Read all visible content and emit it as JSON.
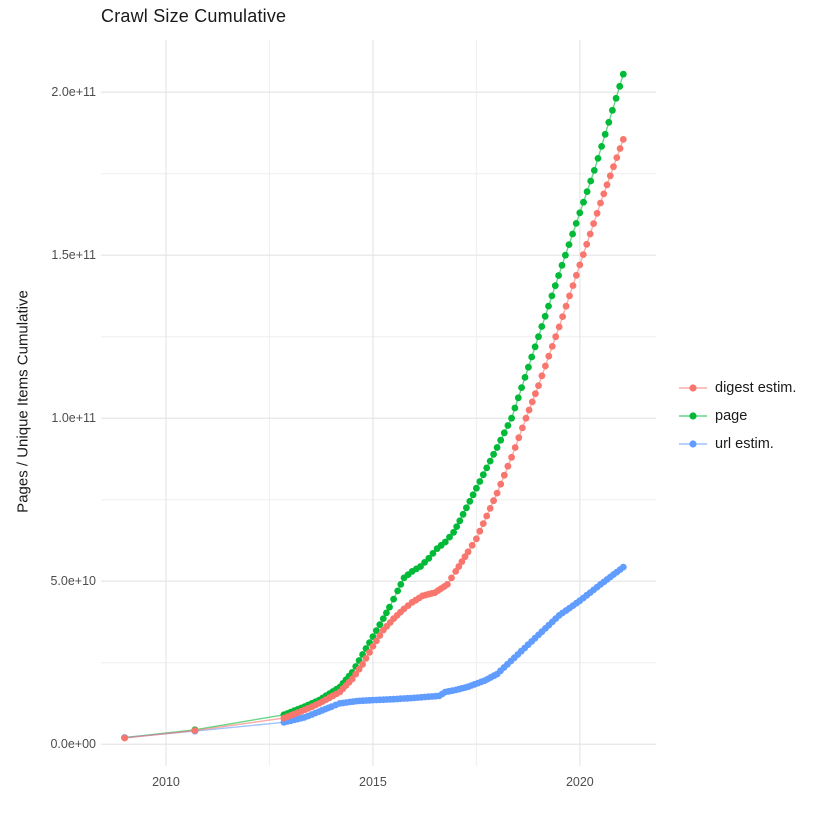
{
  "title": "Crawl Size Cumulative",
  "axes": {
    "y_title": "Pages / Unique Items Cumulative",
    "y_ticks": [
      {
        "label": "0.0e+00",
        "value": 0
      },
      {
        "label": "5.0e+10",
        "value": 50000000000.0
      },
      {
        "label": "1.0e+11",
        "value": 100000000000.0
      },
      {
        "label": "1.5e+11",
        "value": 150000000000.0
      },
      {
        "label": "2.0e+11",
        "value": 200000000000.0
      }
    ],
    "x_ticks": [
      {
        "label": "2010",
        "value": 2010
      },
      {
        "label": "2015",
        "value": 2015
      },
      {
        "label": "2020",
        "value": 2020
      }
    ]
  },
  "legend": [
    {
      "label": "digest estim.",
      "color": "#F8766D"
    },
    {
      "label": "page",
      "color": "#00BA38"
    },
    {
      "label": "url estim.",
      "color": "#619CFF"
    }
  ],
  "colors": {
    "background": "#ffffff",
    "grid_major": "#e4e4e4",
    "grid_minor": "#f0f0f0",
    "tick_text": "#4d4d4d",
    "title_text": "#1a1a1a"
  },
  "chart_data": {
    "type": "line",
    "title": "Crawl Size Cumulative",
    "xlabel": "",
    "ylabel": "Pages / Unique Items Cumulative",
    "x_unit": "year",
    "xlim": [
      2008.43,
      2021.84
    ],
    "ylim": [
      -6700000000.0,
      216000000000.0
    ],
    "x_major_ticks": [
      2010,
      2015,
      2020
    ],
    "x_minor_ticks": [
      2012.5,
      2017.5
    ],
    "y_major_ticks": [
      0,
      50000000000.0,
      100000000000.0,
      150000000000.0,
      200000000000.0
    ],
    "y_minor_ticks": [
      25000000000.0,
      75000000000.0,
      125000000000.0,
      175000000000.0
    ],
    "grid": true,
    "legend_position": "right",
    "marker": "point",
    "point_radius_px": 3.4,
    "dense_interpolation_from": 2013.3,
    "dense_step_years": 0.08333,
    "draw_order": [
      "page",
      "url estim.",
      "digest estim."
    ],
    "series": [
      {
        "name": "digest estim.",
        "color": "#F8766D",
        "points": [
          [
            2009.0,
            1900000000.0
          ],
          [
            2010.7,
            4200000000.0
          ],
          [
            2012.85,
            8000000000.0
          ],
          [
            2013.35,
            10500000000.0
          ],
          [
            2013.7,
            12500000000.0
          ],
          [
            2014.2,
            16000000000.0
          ],
          [
            2014.5,
            20000000000.0
          ],
          [
            2014.75,
            24500000000.0
          ],
          [
            2015.0,
            30000000000.0
          ],
          [
            2015.25,
            35000000000.0
          ],
          [
            2015.5,
            38500000000.0
          ],
          [
            2015.75,
            41500000000.0
          ],
          [
            2015.95,
            43500000000.0
          ],
          [
            2016.2,
            45500000000.0
          ],
          [
            2016.5,
            46500000000.0
          ],
          [
            2016.8,
            49000000000.0
          ],
          [
            2017.0,
            53000000000.0
          ],
          [
            2017.3,
            59000000000.0
          ],
          [
            2017.5,
            63000000000.0
          ],
          [
            2018.0,
            77000000000.0
          ],
          [
            2018.35,
            88000000000.0
          ],
          [
            2018.7,
            100000000000.0
          ],
          [
            2019.0,
            110000000000.0
          ],
          [
            2019.5,
            128000000000.0
          ],
          [
            2020.0,
            147000000000.0
          ],
          [
            2020.5,
            166000000000.0
          ],
          [
            2021.05,
            185500000000.0
          ]
        ]
      },
      {
        "name": "page",
        "color": "#00BA38",
        "points": [
          [
            2009.0,
            2000000000.0
          ],
          [
            2010.7,
            4400000000.0
          ],
          [
            2012.85,
            9000000000.0
          ],
          [
            2013.35,
            11500000000.0
          ],
          [
            2013.7,
            13500000000.0
          ],
          [
            2014.2,
            17500000000.0
          ],
          [
            2014.5,
            22000000000.0
          ],
          [
            2014.75,
            27500000000.0
          ],
          [
            2015.0,
            33000000000.0
          ],
          [
            2015.25,
            38500000000.0
          ],
          [
            2015.4,
            42000000000.0
          ],
          [
            2015.6,
            47000000000.0
          ],
          [
            2015.75,
            51000000000.0
          ],
          [
            2015.95,
            53000000000.0
          ],
          [
            2016.15,
            54500000000.0
          ],
          [
            2016.35,
            57000000000.0
          ],
          [
            2016.55,
            60000000000.0
          ],
          [
            2016.75,
            62000000000.0
          ],
          [
            2016.95,
            65000000000.0
          ],
          [
            2017.1,
            68500000000.0
          ],
          [
            2017.5,
            78500000000.0
          ],
          [
            2018.0,
            91000000000.0
          ],
          [
            2018.35,
            100000000000.0
          ],
          [
            2019.0,
            125000000000.0
          ],
          [
            2019.65,
            150000000000.0
          ],
          [
            2020.35,
            176000000000.0
          ],
          [
            2021.05,
            205500000000.0
          ]
        ]
      },
      {
        "name": "url estim.",
        "color": "#619CFF",
        "points": [
          [
            2009.0,
            2000000000.0
          ],
          [
            2010.7,
            4000000000.0
          ],
          [
            2012.85,
            6700000000.0
          ],
          [
            2013.35,
            8200000000.0
          ],
          [
            2013.7,
            10000000000.0
          ],
          [
            2014.0,
            11500000000.0
          ],
          [
            2014.2,
            12500000000.0
          ],
          [
            2014.6,
            13200000000.0
          ],
          [
            2015.0,
            13500000000.0
          ],
          [
            2015.5,
            13800000000.0
          ],
          [
            2016.0,
            14200000000.0
          ],
          [
            2016.6,
            14800000000.0
          ],
          [
            2016.75,
            16000000000.0
          ],
          [
            2017.0,
            16600000000.0
          ],
          [
            2017.3,
            17600000000.0
          ],
          [
            2017.7,
            19500000000.0
          ],
          [
            2018.0,
            21500000000.0
          ],
          [
            2018.5,
            27500000000.0
          ],
          [
            2019.0,
            33500000000.0
          ],
          [
            2019.5,
            39500000000.0
          ],
          [
            2020.0,
            44000000000.0
          ],
          [
            2020.5,
            49000000000.0
          ],
          [
            2021.05,
            54300000000.0
          ]
        ]
      }
    ]
  }
}
